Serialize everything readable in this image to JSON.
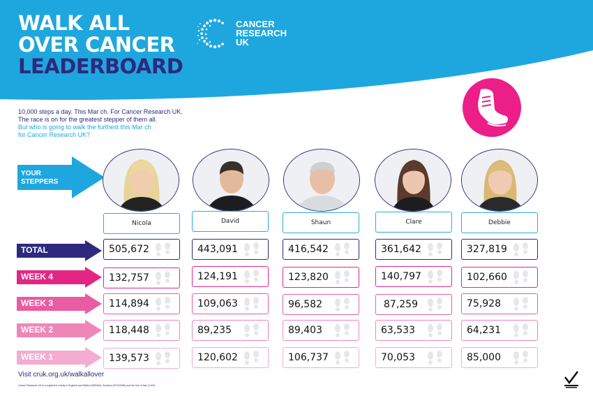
{
  "header": {
    "title_line1": "WALK ALL",
    "title_line2": "OVER CANCER",
    "title_line3": "LEADERBOARD",
    "logo": {
      "line1": "CANCER",
      "line2": "RESEARCH",
      "line3": "UK"
    }
  },
  "intro": {
    "line1": "10,000 steps a day. This Mar ch. For Cancer Research UK.",
    "line2": "The race is on for the greatest stepper of them all.",
    "line3": "But who is going to walk the furthest this Mar ch",
    "line4": "for Cancer Research UK?"
  },
  "steppers_label": {
    "line1": "YOUR",
    "line2": "STEPPERS"
  },
  "colors": {
    "banner_blue": "#1ea7de",
    "navy": "#2d2a7e",
    "magenta": "#ec1e88",
    "week4": "#e52584",
    "week3": "#ea5ca2",
    "week2": "#ef86b8",
    "week1": "#f4acd0"
  },
  "icons": {
    "shoe": "running-shoe-icon",
    "footprints": "footprints-icon",
    "logo": "cruk-logo-icon"
  },
  "people": [
    {
      "name": "Nicola",
      "hair": "blonde"
    },
    {
      "name": "David",
      "hair": "dark"
    },
    {
      "name": "Shaun",
      "hair": "grey"
    },
    {
      "name": "Clare",
      "hair": "brown"
    },
    {
      "name": "Debbie",
      "hair": "blonde"
    }
  ],
  "rows": [
    {
      "label": "TOTAL",
      "values": [
        "505,672",
        "443,091",
        "416,542",
        "361,642",
        "327,819"
      ]
    },
    {
      "label": "WEEK 4",
      "values": [
        "132,757",
        "124,191",
        "123,820",
        "140,797",
        "102,660"
      ]
    },
    {
      "label": "WEEK 3",
      "values": [
        "114,894",
        "109,063",
        "96,582",
        "87,259",
        "75,928"
      ]
    },
    {
      "label": "WEEK 2",
      "values": [
        "118,448",
        "89,235",
        "89,403",
        "63,533",
        "64,231"
      ]
    },
    {
      "label": "WEEK 1",
      "values": [
        "139,573",
        "120,602",
        "106,737",
        "70,053",
        "85,000"
      ]
    }
  ],
  "footer": {
    "visit": "Visit cruk.org.uk/walkallover",
    "legal": "Cancer Research UK is a registered charity in England and Wales (1089464), Scotland (SC041666) and the Isle of Man (1103)."
  }
}
